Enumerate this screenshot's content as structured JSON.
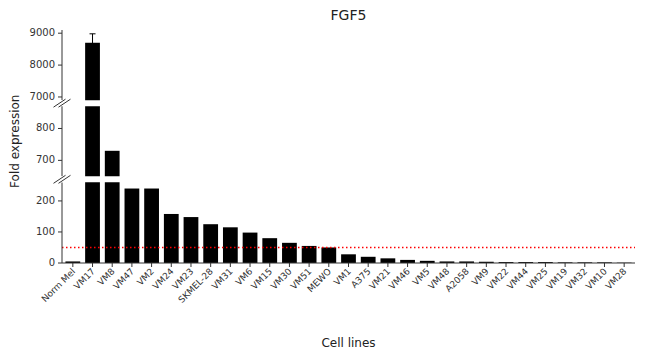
{
  "chart_data": {
    "type": "bar",
    "title": "FGF5",
    "xlabel": "Cell lines",
    "ylabel": "Fold expression",
    "categories": [
      "Norm Mel",
      "VM17",
      "VM8",
      "VM47",
      "VM2",
      "VM24",
      "VM23",
      "SKMEL-28",
      "VM31",
      "VM6",
      "VM15",
      "VM30",
      "VM51",
      "MEWO",
      "VM1",
      "A375",
      "VM21",
      "VM46",
      "VM5",
      "VM48",
      "A2058",
      "VM9",
      "VM22",
      "VM44",
      "VM25",
      "VM19",
      "VM32",
      "VM10",
      "VM28"
    ],
    "values": [
      5,
      8700,
      730,
      240,
      240,
      158,
      148,
      125,
      115,
      98,
      80,
      65,
      55,
      50,
      28,
      20,
      15,
      10,
      7,
      5,
      5,
      4,
      3,
      3,
      3,
      2,
      2,
      2,
      1
    ],
    "error_bars": [
      0,
      280,
      0,
      0,
      0,
      0,
      0,
      0,
      0,
      0,
      0,
      0,
      0,
      0,
      0,
      0,
      0,
      0,
      0,
      0,
      0,
      0,
      0,
      0,
      0,
      0,
      0,
      0,
      0
    ],
    "color": "#000000",
    "reference_lines": [
      {
        "value": 50,
        "color": "#ff0000",
        "line_style": "dotted"
      }
    ],
    "segments": [
      {
        "ylim": [
          0,
          260
        ],
        "yticks": [
          0,
          100,
          200
        ]
      },
      {
        "ylim": [
          650,
          870
        ],
        "yticks": [
          700,
          800
        ]
      },
      {
        "ylim": [
          6900,
          9100
        ],
        "yticks": [
          7000,
          8000,
          9000
        ]
      }
    ],
    "grid": false
  }
}
